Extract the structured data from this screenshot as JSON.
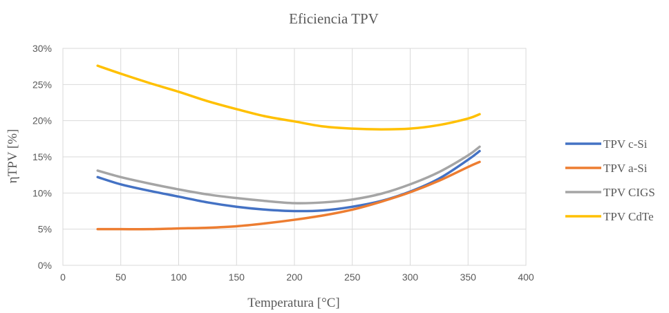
{
  "chart_data": {
    "type": "line",
    "title": "Eficiencia TPV",
    "xlabel": "Temperatura [°C]",
    "ylabel": "ηTPV [%]",
    "xlim": [
      0,
      400
    ],
    "ylim": [
      0,
      30
    ],
    "x_ticks": [
      0,
      50,
      100,
      150,
      200,
      250,
      300,
      350,
      400
    ],
    "y_ticks": [
      0,
      5,
      10,
      15,
      20,
      25,
      30
    ],
    "y_tick_labels": [
      "0%",
      "5%",
      "10%",
      "15%",
      "20%",
      "25%",
      "30%"
    ],
    "grid": "vertical-and-horizontal",
    "legend_position": "right",
    "x": [
      30,
      50,
      75,
      100,
      125,
      150,
      175,
      200,
      225,
      250,
      275,
      300,
      325,
      350,
      360
    ],
    "series": [
      {
        "name": "TPV c-Si",
        "color": "#4472c4",
        "values": [
          12.2,
          11.2,
          10.3,
          9.5,
          8.7,
          8.1,
          7.7,
          7.5,
          7.6,
          8.1,
          8.9,
          10.2,
          12.0,
          14.6,
          15.8
        ]
      },
      {
        "name": "TPV a-Si",
        "color": "#ed7d31",
        "values": [
          5.0,
          5.0,
          5.0,
          5.1,
          5.2,
          5.4,
          5.8,
          6.3,
          6.9,
          7.7,
          8.8,
          10.1,
          11.7,
          13.6,
          14.3
        ]
      },
      {
        "name": "TPV CIGS",
        "color": "#a5a5a5",
        "values": [
          13.1,
          12.2,
          11.3,
          10.5,
          9.8,
          9.3,
          8.9,
          8.6,
          8.7,
          9.1,
          9.9,
          11.2,
          12.9,
          15.2,
          16.4
        ]
      },
      {
        "name": "TPV CdTe",
        "color": "#ffc000",
        "values": [
          27.6,
          26.5,
          25.2,
          24.0,
          22.7,
          21.6,
          20.6,
          19.9,
          19.2,
          18.9,
          18.8,
          18.9,
          19.4,
          20.3,
          20.9
        ]
      }
    ]
  }
}
